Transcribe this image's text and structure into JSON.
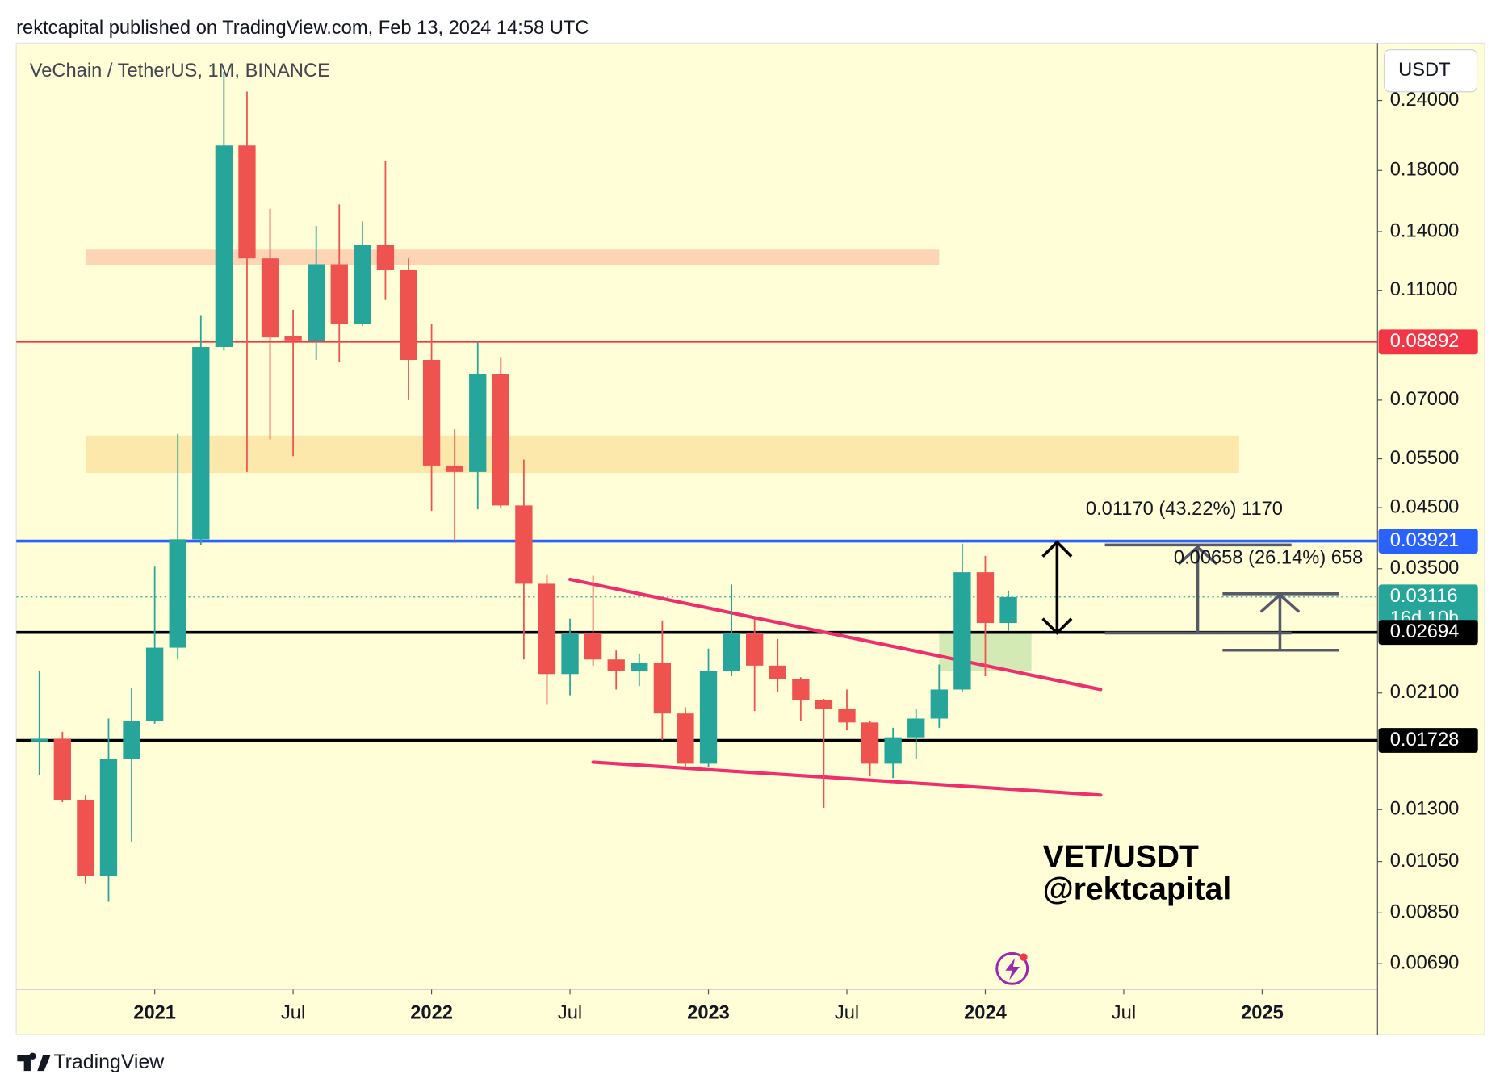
{
  "header": "rektcapital published on TradingView.com, Feb 13, 2024 14:58 UTC",
  "footer": "TradingView",
  "chart_data": {
    "type": "candlestick",
    "title": "VeChain / TetherUS, 1M, BINANCE",
    "currency": "USDT",
    "watermark": [
      "VET/USDT",
      "@rektcapital"
    ],
    "log_scale": true,
    "up_color": "#26a69a",
    "down_color": "#ef5350",
    "x": [
      "2020-08",
      "2020-09",
      "2020-10",
      "2020-11",
      "2020-12",
      "2021-01",
      "2021-02",
      "2021-03",
      "2021-04",
      "2021-05",
      "2021-06",
      "2021-07",
      "2021-08",
      "2021-09",
      "2021-10",
      "2021-11",
      "2021-12",
      "2022-01",
      "2022-02",
      "2022-03",
      "2022-04",
      "2022-05",
      "2022-06",
      "2022-07",
      "2022-08",
      "2022-09",
      "2022-10",
      "2022-11",
      "2022-12",
      "2023-01",
      "2023-02",
      "2023-03",
      "2023-04",
      "2023-05",
      "2023-06",
      "2023-07",
      "2023-08",
      "2023-09",
      "2023-10",
      "2023-11",
      "2023-12",
      "2024-01",
      "2024-02"
    ],
    "open": [
      0.0172,
      0.0174,
      0.0135,
      0.0099,
      0.016,
      0.0187,
      0.0253,
      0.0395,
      0.0871,
      0.1995,
      0.1254,
      0.091,
      0.0893,
      0.1224,
      0.0958,
      0.1325,
      0.1195,
      0.0826,
      0.0535,
      0.0521,
      0.0779,
      0.0454,
      0.0329,
      0.0227,
      0.0269,
      0.0241,
      0.023,
      0.0238,
      0.0193,
      0.0157,
      0.023,
      0.0269,
      0.0235,
      0.0222,
      0.0204,
      0.0197,
      0.0186,
      0.0157,
      0.0175,
      0.0189,
      0.0213,
      0.0345,
      0.028
    ],
    "high": [
      0.023,
      0.0179,
      0.0138,
      0.0189,
      0.0214,
      0.0353,
      0.0609,
      0.0993,
      0.27,
      0.249,
      0.1538,
      0.1015,
      0.1433,
      0.1565,
      0.146,
      0.1872,
      0.1254,
      0.0958,
      0.0621,
      0.0888,
      0.0833,
      0.0548,
      0.0342,
      0.0285,
      0.034,
      0.025,
      0.0247,
      0.0283,
      0.0198,
      0.0252,
      0.0328,
      0.0285,
      0.0262,
      0.0224,
      0.0205,
      0.0213,
      0.0187,
      0.0182,
      0.0197,
      0.0236,
      0.0388,
      0.0369,
      0.032
    ],
    "low": [
      0.015,
      0.0134,
      0.0096,
      0.0089,
      0.0114,
      0.0185,
      0.0241,
      0.0386,
      0.0859,
      0.0521,
      0.0596,
      0.0556,
      0.0826,
      0.0818,
      0.0949,
      0.1057,
      0.07,
      0.0444,
      0.0393,
      0.0447,
      0.0449,
      0.0241,
      0.02,
      0.0208,
      0.0235,
      0.0213,
      0.0216,
      0.0173,
      0.0154,
      0.0155,
      0.0225,
      0.0195,
      0.0211,
      0.0187,
      0.0131,
      0.018,
      0.0149,
      0.0148,
      0.016,
      0.0182,
      0.0211,
      0.0225,
      0.0271
    ],
    "close": [
      0.0174,
      0.0135,
      0.0099,
      0.016,
      0.0187,
      0.0253,
      0.0395,
      0.0871,
      0.1995,
      0.1254,
      0.0906,
      0.0895,
      0.1224,
      0.0958,
      0.1325,
      0.1195,
      0.0826,
      0.0535,
      0.0521,
      0.0779,
      0.0454,
      0.0329,
      0.0227,
      0.0269,
      0.0241,
      0.023,
      0.0238,
      0.0193,
      0.0157,
      0.023,
      0.0269,
      0.0235,
      0.0222,
      0.0204,
      0.0197,
      0.0186,
      0.0157,
      0.0175,
      0.0189,
      0.0213,
      0.0345,
      0.028,
      0.03116
    ],
    "xlim": [
      "2020-07",
      "2025-06"
    ],
    "xticks": [
      {
        "value": "2021-01",
        "label": "2021"
      },
      {
        "value": "2021-07",
        "label": "Jul"
      },
      {
        "value": "2022-01",
        "label": "2022"
      },
      {
        "value": "2022-07",
        "label": "Jul"
      },
      {
        "value": "2023-01",
        "label": "2023"
      },
      {
        "value": "2023-07",
        "label": "Jul"
      },
      {
        "value": "2024-01",
        "label": "2024"
      },
      {
        "value": "2024-07",
        "label": "Jul"
      },
      {
        "value": "2025-01",
        "label": "2025"
      }
    ],
    "ylim": [
      0.0062,
      0.304
    ],
    "yticks": [
      {
        "value": 0.24,
        "label": "0.24000"
      },
      {
        "value": 0.18,
        "label": "0.18000"
      },
      {
        "value": 0.14,
        "label": "0.14000"
      },
      {
        "value": 0.11,
        "label": "0.11000"
      },
      {
        "value": 0.07,
        "label": "0.07000"
      },
      {
        "value": 0.055,
        "label": "0.05500"
      },
      {
        "value": 0.045,
        "label": "0.04500"
      },
      {
        "value": 0.035,
        "label": "0.03500"
      },
      {
        "value": 0.021,
        "label": "0.02100"
      },
      {
        "value": 0.013,
        "label": "0.01300"
      },
      {
        "value": 0.0105,
        "label": "0.01050"
      },
      {
        "value": 0.0085,
        "label": "0.00850"
      },
      {
        "value": 0.0069,
        "label": "0.00690"
      }
    ],
    "horizontal_lines": [
      {
        "value": 0.08892,
        "color": "#f23645",
        "style": "thin"
      },
      {
        "value": 0.03921,
        "color": "#2962ff",
        "style": "solid"
      },
      {
        "value": 0.03116,
        "color": "#26a69a",
        "style": "dotted",
        "countdown": "16d 10h"
      },
      {
        "value": 0.02694,
        "color": "#000000",
        "style": "solid"
      },
      {
        "value": 0.01728,
        "color": "#000000",
        "style": "solid"
      }
    ],
    "zones": [
      {
        "low": 0.122,
        "high": 0.13,
        "start": "2020-10",
        "end": "2023-11",
        "color": "#fdcfb0"
      },
      {
        "low": 0.0519,
        "high": 0.0605,
        "start": "2020-10",
        "end": "2024-12",
        "color": "#fde5a6"
      },
      {
        "low": 0.023,
        "high": 0.0271,
        "start": "2023-11",
        "end": "2024-03",
        "color": "#cfe8b0"
      }
    ],
    "trendlines": [
      {
        "from": [
          "2022-07",
          0.0335
        ],
        "to": [
          "2024-06",
          0.0213
        ],
        "color": "#ef2e6e"
      },
      {
        "from": [
          "2022-08",
          0.0158
        ],
        "to": [
          "2024-06",
          0.0138
        ],
        "color": "#ef2e6e"
      }
    ],
    "annotations": [
      "0.01170 (43.22%) 1170",
      "0.00658 (26.14%) 658"
    ]
  }
}
